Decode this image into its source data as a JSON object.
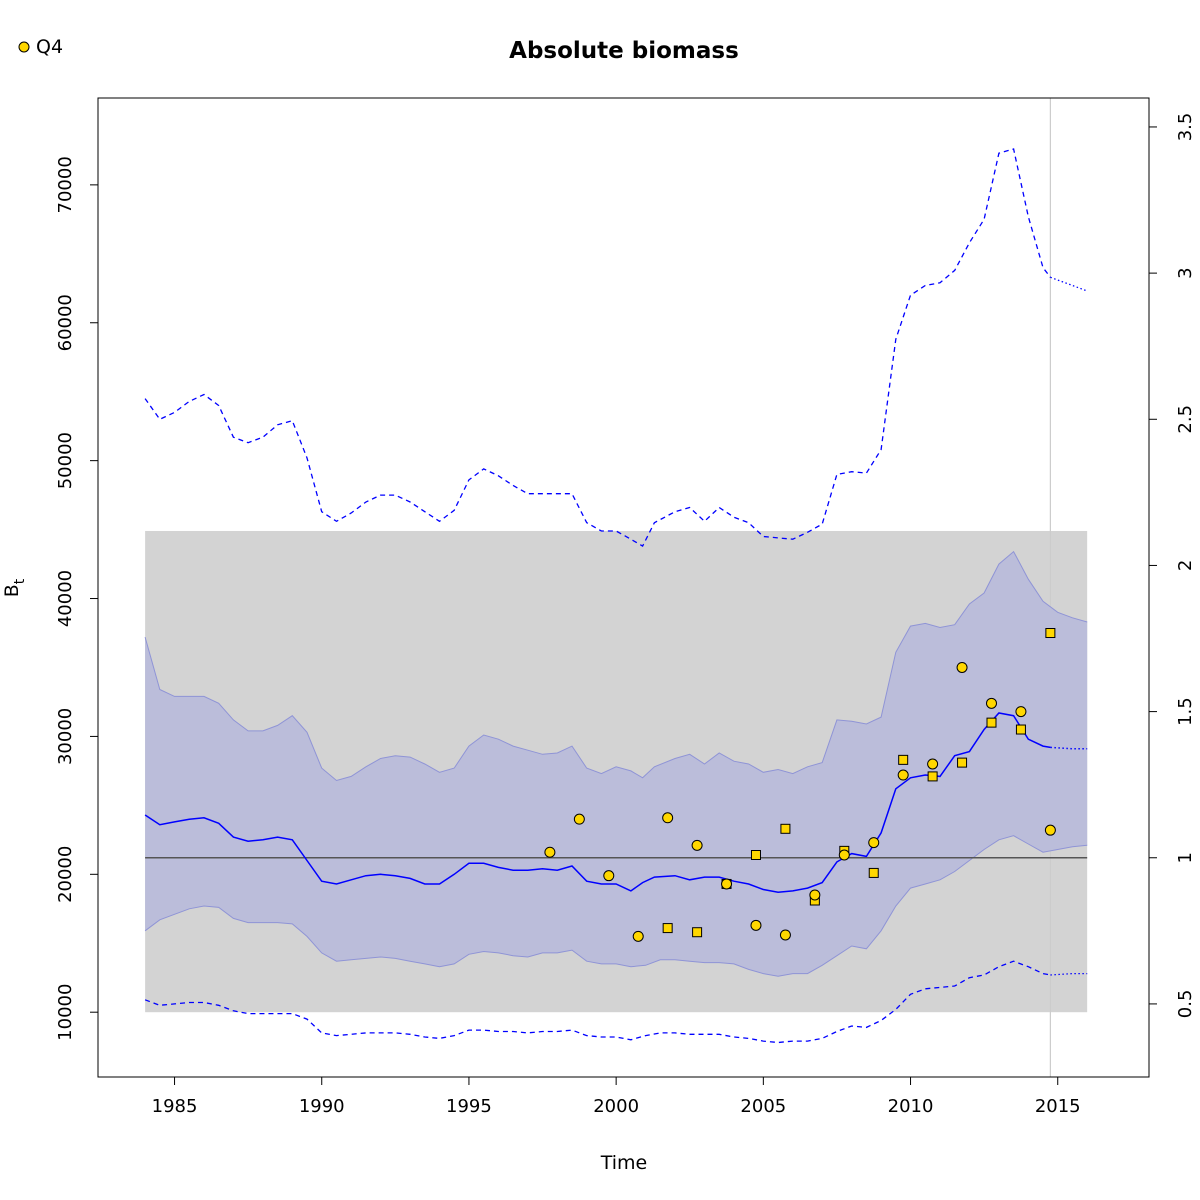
{
  "chart_data": {
    "type": "line",
    "title": "Absolute biomass",
    "xlabel": "Time",
    "ylabel": "B",
    "ylabel_subscript": "t",
    "xlim": [
      1982.4,
      2018.1
    ],
    "ylim": [
      5300,
      76300
    ],
    "x_ticks": [
      1985,
      1990,
      1995,
      2000,
      2005,
      2010,
      2015
    ],
    "y_ticks": [
      10000,
      20000,
      30000,
      40000,
      50000,
      60000,
      70000
    ],
    "right_axis": {
      "reference_value": 21200,
      "ticks": [
        0.5,
        1,
        1.5,
        2,
        2.5,
        3,
        3.5
      ],
      "tick_labels": [
        "0.5",
        "1",
        "1.5",
        "2",
        "2.5",
        "3",
        "3.5"
      ]
    },
    "colors": {
      "estimate_line": "#0000ff",
      "ci_band": "#bbbdda",
      "ci_band_edge": "#8f94d6",
      "reference_region": "#d3d3d3",
      "reference_line": "#555555",
      "points": "#ffd700",
      "vline": "#cccccc"
    },
    "legend": {
      "position": "top-left",
      "entries": [
        {
          "label": "Q4",
          "marker": "circle",
          "color": "#ffd700"
        }
      ]
    },
    "reference_region": {
      "x": [
        1984.0,
        2016.0
      ],
      "y": [
        10000,
        44900
      ]
    },
    "reference_line": {
      "y": 21200,
      "x": [
        1984.0,
        2016.0
      ]
    },
    "vline_x": 2014.75,
    "estimate": {
      "x": [
        1984.0,
        1984.5,
        1985.0,
        1985.5,
        1986.0,
        1986.5,
        1987.0,
        1987.5,
        1988.0,
        1988.5,
        1989.0,
        1989.5,
        1990.0,
        1990.5,
        1991.0,
        1991.5,
        1992.0,
        1992.5,
        1993.0,
        1993.5,
        1994.0,
        1994.5,
        1995.0,
        1995.5,
        1996.0,
        1996.5,
        1997.0,
        1997.5,
        1998.0,
        1998.5,
        1999.0,
        1999.5,
        2000.0,
        2000.5,
        2000.9,
        2001.3,
        2002.0,
        2002.5,
        2003.0,
        2003.5,
        2004.0,
        2004.5,
        2005.0,
        2005.5,
        2006.0,
        2006.5,
        2007.0,
        2007.5,
        2008.0,
        2008.5,
        2009.0,
        2009.5,
        2010.0,
        2010.5,
        2011.0,
        2011.5,
        2012.0,
        2012.5,
        2013.0,
        2013.5,
        2014.0,
        2014.5,
        2014.75
      ],
      "y": [
        24300,
        23600,
        23800,
        24000,
        24100,
        23700,
        22700,
        22400,
        22500,
        22700,
        22500,
        21000,
        19500,
        19300,
        19600,
        19900,
        20000,
        19900,
        19700,
        19300,
        19300,
        20000,
        20800,
        20800,
        20500,
        20300,
        20300,
        20400,
        20300,
        20600,
        19500,
        19300,
        19300,
        18800,
        19400,
        19800,
        19900,
        19600,
        19800,
        19800,
        19500,
        19300,
        18900,
        18700,
        18800,
        19000,
        19400,
        20900,
        21500,
        21300,
        23000,
        26200,
        27000,
        27200,
        27100,
        28600,
        28900,
        30500,
        31700,
        31500,
        29800,
        29300,
        29200
      ]
    },
    "estimate_forecast": {
      "x": [
        2014.75,
        2015.5,
        2016.0
      ],
      "y": [
        29200,
        29100,
        29100
      ]
    },
    "ci_lower": {
      "x": [
        1984.0,
        1984.5,
        1985.0,
        1985.5,
        1986.0,
        1986.5,
        1987.0,
        1987.5,
        1988.0,
        1988.5,
        1989.0,
        1989.5,
        1990.0,
        1990.5,
        1991.0,
        1991.5,
        1992.0,
        1992.5,
        1993.0,
        1993.5,
        1994.0,
        1994.5,
        1995.0,
        1995.5,
        1996.0,
        1996.5,
        1997.0,
        1997.5,
        1998.0,
        1998.5,
        1999.0,
        1999.5,
        2000.0,
        2000.5,
        2001.0,
        2001.5,
        2002.0,
        2002.5,
        2003.0,
        2003.5,
        2004.0,
        2004.5,
        2005.0,
        2005.5,
        2006.0,
        2006.5,
        2007.0,
        2007.5,
        2008.0,
        2008.5,
        2009.0,
        2009.5,
        2010.0,
        2010.5,
        2011.0,
        2011.5,
        2012.0,
        2012.5,
        2013.0,
        2013.5,
        2014.0,
        2014.5,
        2015.0,
        2015.5,
        2016.0
      ],
      "y": [
        15900,
        16700,
        17100,
        17500,
        17700,
        17600,
        16800,
        16500,
        16500,
        16500,
        16400,
        15500,
        14300,
        13700,
        13800,
        13900,
        14000,
        13900,
        13700,
        13500,
        13300,
        13500,
        14200,
        14400,
        14300,
        14100,
        14000,
        14300,
        14300,
        14500,
        13700,
        13500,
        13500,
        13300,
        13400,
        13800,
        13800,
        13700,
        13600,
        13600,
        13500,
        13100,
        12800,
        12600,
        12800,
        12800,
        13400,
        14100,
        14800,
        14600,
        15900,
        17700,
        19000,
        19300,
        19600,
        20200,
        21000,
        21800,
        22500,
        22800,
        22200,
        21600,
        21800,
        22000,
        22100
      ]
    },
    "ci_upper": {
      "x": [
        1984.0,
        1984.5,
        1985.0,
        1985.5,
        1986.0,
        1986.5,
        1987.0,
        1987.5,
        1988.0,
        1988.5,
        1989.0,
        1989.5,
        1990.0,
        1990.5,
        1991.0,
        1991.5,
        1992.0,
        1992.5,
        1993.0,
        1993.5,
        1994.0,
        1994.5,
        1995.0,
        1995.5,
        1996.0,
        1996.5,
        1997.0,
        1997.5,
        1998.0,
        1998.5,
        1999.0,
        1999.5,
        2000.0,
        2000.5,
        2000.9,
        2001.3,
        2002.0,
        2002.5,
        2003.0,
        2003.5,
        2004.0,
        2004.5,
        2005.0,
        2005.5,
        2006.0,
        2006.5,
        2007.0,
        2007.5,
        2008.0,
        2008.5,
        2009.0,
        2009.5,
        2010.0,
        2010.5,
        2011.0,
        2011.5,
        2012.0,
        2012.5,
        2013.0,
        2013.5,
        2014.0,
        2014.5,
        2015.0,
        2015.5,
        2016.0
      ],
      "y": [
        37200,
        33400,
        32900,
        32900,
        32900,
        32400,
        31200,
        30400,
        30400,
        30800,
        31500,
        30300,
        27700,
        26800,
        27100,
        27800,
        28400,
        28600,
        28500,
        28000,
        27400,
        27700,
        29300,
        30100,
        29800,
        29300,
        29000,
        28700,
        28800,
        29300,
        27700,
        27300,
        27800,
        27500,
        27000,
        27800,
        28400,
        28700,
        28000,
        28800,
        28200,
        28000,
        27400,
        27600,
        27300,
        27800,
        28100,
        31200,
        31100,
        30900,
        31400,
        36100,
        38000,
        38200,
        37900,
        38100,
        39600,
        40400,
        42500,
        43400,
        41400,
        39800,
        39000,
        38600,
        38300
      ]
    },
    "outer_upper": {
      "x": [
        1984.0,
        1984.5,
        1985.0,
        1985.5,
        1986.0,
        1986.5,
        1987.0,
        1987.5,
        1988.0,
        1988.5,
        1989.0,
        1989.5,
        1990.0,
        1990.5,
        1991.0,
        1991.5,
        1992.0,
        1992.5,
        1993.0,
        1993.5,
        1994.0,
        1994.5,
        1995.0,
        1995.5,
        1996.0,
        1996.5,
        1997.0,
        1997.5,
        1998.0,
        1998.5,
        1999.0,
        1999.5,
        2000.0,
        2000.5,
        2000.9,
        2001.3,
        2002.0,
        2002.5,
        2003.0,
        2003.5,
        2004.0,
        2004.5,
        2005.0,
        2005.5,
        2006.0,
        2006.5,
        2007.0,
        2007.5,
        2008.0,
        2008.5,
        2009.0,
        2009.5,
        2010.0,
        2010.5,
        2011.0,
        2011.5,
        2012.0,
        2012.5,
        2013.0,
        2013.5,
        2014.0,
        2014.5,
        2014.75
      ],
      "y": [
        54500,
        53000,
        53500,
        54300,
        54800,
        54000,
        51700,
        51300,
        51700,
        52600,
        52900,
        50200,
        46300,
        45600,
        46200,
        47000,
        47500,
        47500,
        47000,
        46300,
        45600,
        46400,
        48600,
        49400,
        48900,
        48200,
        47600,
        47600,
        47600,
        47600,
        45500,
        44900,
        44900,
        44300,
        43800,
        45500,
        46300,
        46600,
        45600,
        46600,
        45900,
        45500,
        44500,
        44400,
        44300,
        44800,
        45400,
        49000,
        49200,
        49100,
        50800,
        58800,
        62000,
        62700,
        62900,
        63800,
        65800,
        67500,
        72300,
        72600,
        67700,
        64000,
        63300
      ]
    },
    "outer_upper_forecast": {
      "x": [
        2014.75,
        2015.5,
        2016.0
      ],
      "y": [
        63300,
        62700,
        62300
      ]
    },
    "outer_lower": {
      "x": [
        1984.0,
        1984.5,
        1985.0,
        1985.5,
        1986.0,
        1986.5,
        1987.0,
        1987.5,
        1988.0,
        1988.5,
        1989.0,
        1989.5,
        1990.0,
        1990.5,
        1991.0,
        1991.5,
        1992.0,
        1992.5,
        1993.0,
        1993.5,
        1994.0,
        1994.5,
        1995.0,
        1995.5,
        1996.0,
        1996.5,
        1997.0,
        1997.5,
        1998.0,
        1998.5,
        1999.0,
        1999.5,
        2000.0,
        2000.5,
        2001.0,
        2001.5,
        2002.0,
        2002.5,
        2003.0,
        2003.5,
        2004.0,
        2004.5,
        2005.0,
        2005.5,
        2006.0,
        2006.5,
        2007.0,
        2007.5,
        2008.0,
        2008.5,
        2009.0,
        2009.5,
        2010.0,
        2010.5,
        2011.0,
        2011.5,
        2012.0,
        2012.5,
        2013.0,
        2013.5,
        2014.0,
        2014.5,
        2014.75
      ],
      "y": [
        10900,
        10500,
        10600,
        10700,
        10700,
        10500,
        10100,
        9900,
        9900,
        9900,
        9900,
        9500,
        8500,
        8300,
        8400,
        8500,
        8500,
        8500,
        8400,
        8200,
        8100,
        8300,
        8700,
        8700,
        8600,
        8600,
        8500,
        8600,
        8600,
        8700,
        8300,
        8200,
        8200,
        8000,
        8300,
        8500,
        8500,
        8400,
        8400,
        8400,
        8200,
        8100,
        7900,
        7800,
        7900,
        7900,
        8100,
        8600,
        9000,
        8900,
        9400,
        10200,
        11300,
        11700,
        11800,
        11900,
        12500,
        12700,
        13300,
        13700,
        13300,
        12800,
        12700
      ]
    },
    "outer_lower_forecast": {
      "x": [
        2014.75,
        2015.5,
        2016.0
      ],
      "y": [
        12700,
        12800,
        12800
      ]
    },
    "observations_circle": {
      "name": "Q4",
      "x": [
        1997.75,
        1998.75,
        1999.75,
        2000.75,
        2001.75,
        2002.75,
        2003.75,
        2004.75,
        2005.75,
        2006.75,
        2007.75,
        2008.75,
        2009.75,
        2010.75,
        2011.75,
        2012.75,
        2013.75,
        2014.75
      ],
      "y": [
        21600,
        24000,
        19900,
        15500,
        24100,
        22100,
        19300,
        16300,
        15600,
        18500,
        21400,
        22300,
        27200,
        28000,
        35000,
        32400,
        31800,
        23200
      ]
    },
    "observations_square": {
      "x": [
        2001.75,
        2002.75,
        2003.75,
        2004.75,
        2005.75,
        2006.75,
        2007.75,
        2008.75,
        2009.75,
        2010.75,
        2011.75,
        2012.75,
        2013.75,
        2014.75
      ],
      "y": [
        16100,
        15800,
        19300,
        21400,
        23300,
        18100,
        21700,
        20100,
        28300,
        27100,
        28100,
        31000,
        30500,
        37500
      ]
    }
  }
}
